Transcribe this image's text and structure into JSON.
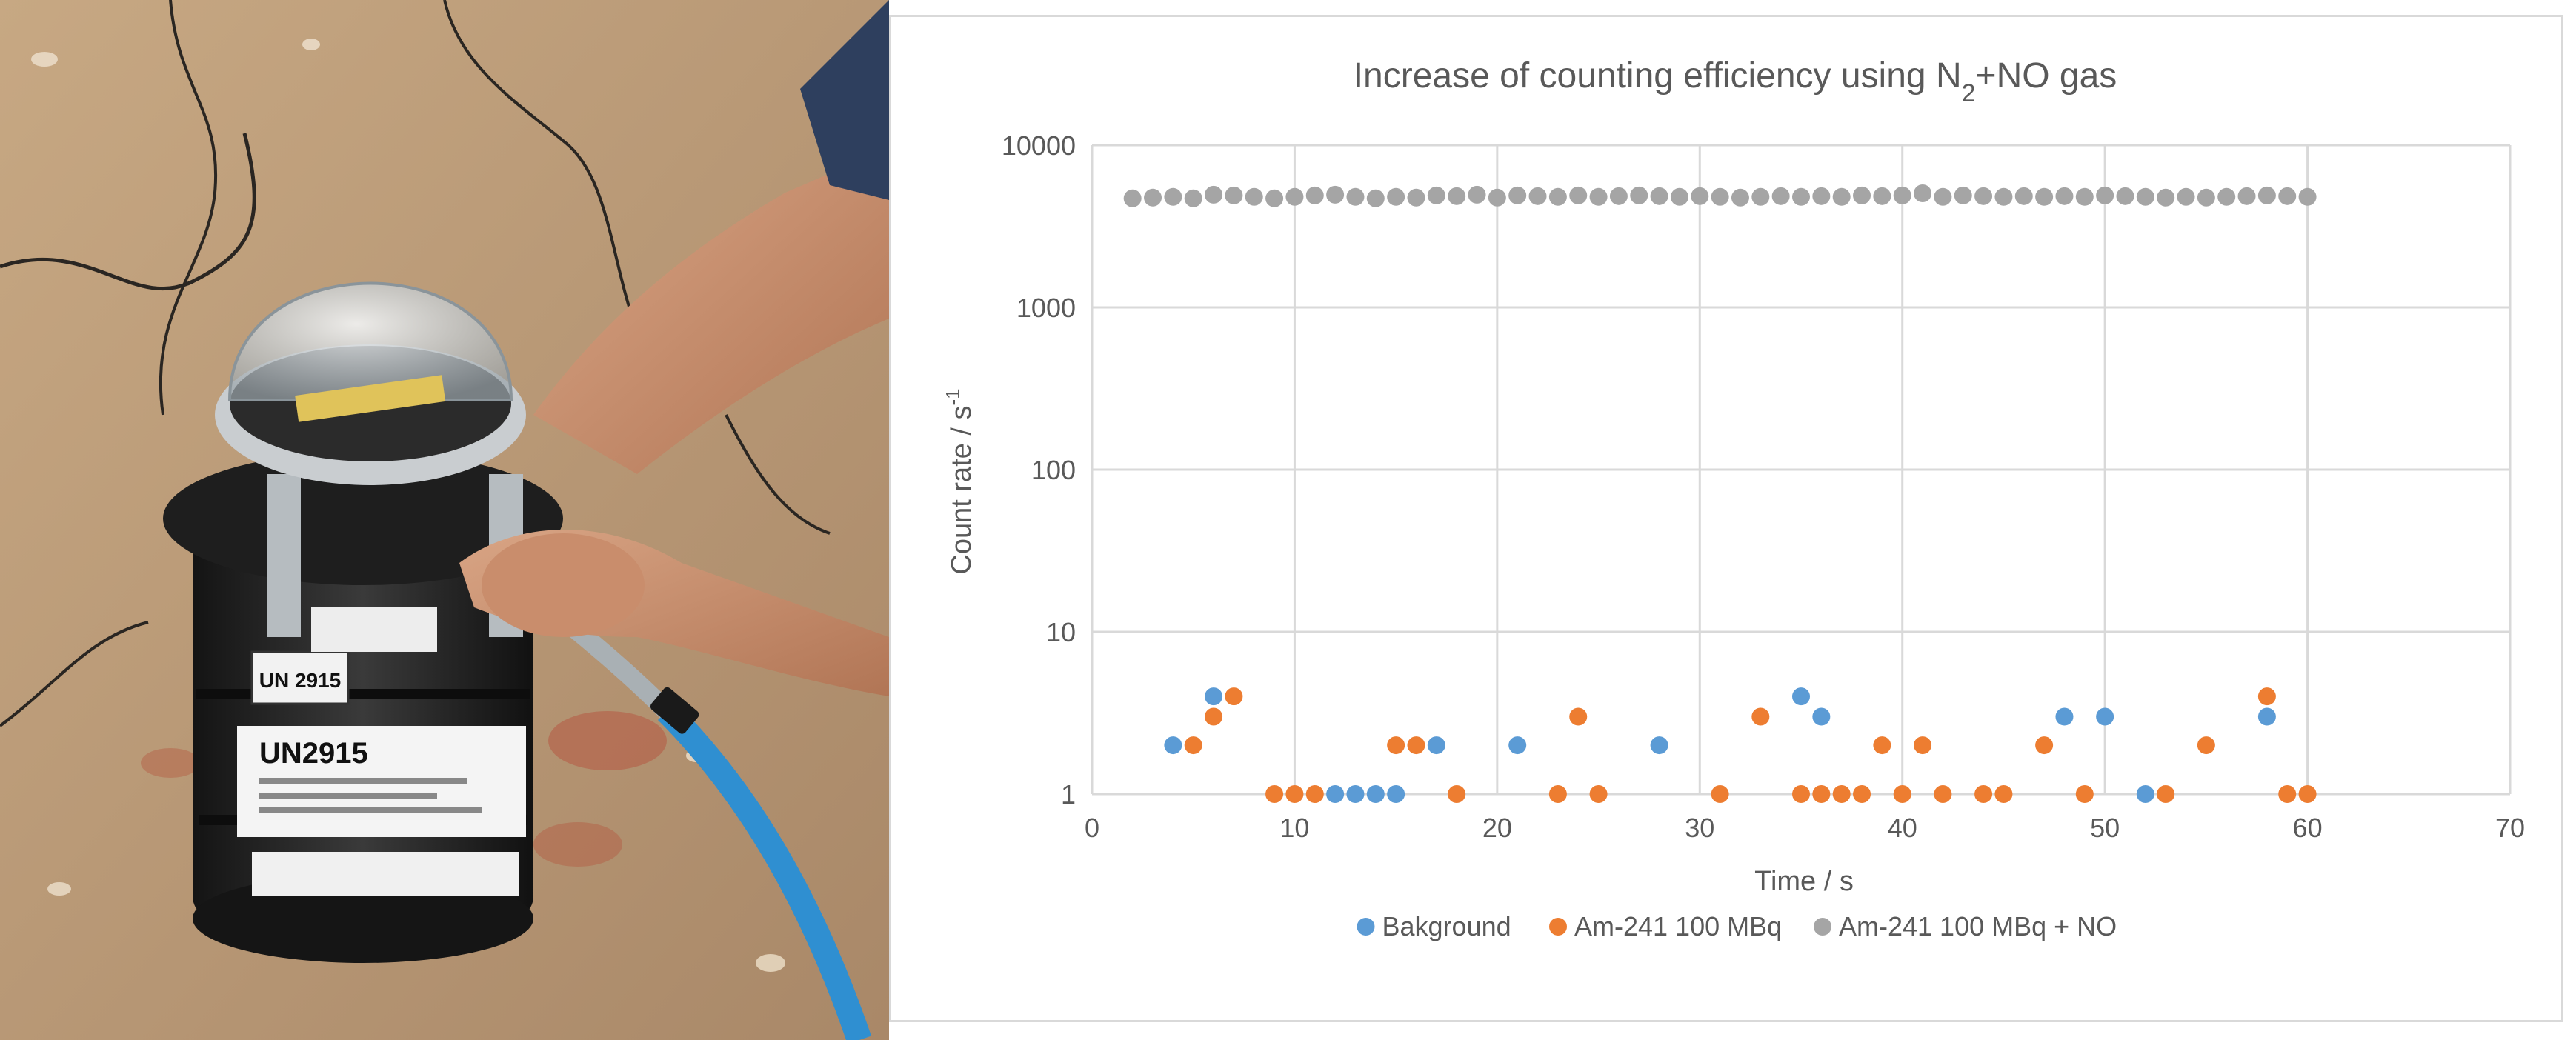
{
  "photo": {
    "description_icon": "field-detector-photo",
    "label_un_small": "UN 2915",
    "label_un_big": "UN2915"
  },
  "chart_data": {
    "type": "scatter",
    "title_main": "Increase of counting efficiency using N",
    "title_sub": "2",
    "title_tail": "+NO gas",
    "xlabel": "Time / s",
    "ylabel_main": "Count rate  / s",
    "ylabel_sup": "-1",
    "x_scale": "linear",
    "y_scale": "log",
    "xlim": [
      0,
      70
    ],
    "ylim": [
      1,
      10000
    ],
    "x_ticks": [
      0,
      10,
      20,
      30,
      40,
      50,
      60,
      70
    ],
    "y_ticks": [
      1,
      10,
      100,
      1000,
      10000
    ],
    "grid": true,
    "legend_position": "bottom",
    "series": [
      {
        "name": "Bakground",
        "color": "#5b9bd5",
        "points": [
          [
            4,
            2
          ],
          [
            6,
            4
          ],
          [
            12,
            1
          ],
          [
            13,
            1
          ],
          [
            14,
            1
          ],
          [
            15,
            1
          ],
          [
            17,
            2
          ],
          [
            21,
            2
          ],
          [
            28,
            2
          ],
          [
            35,
            4
          ],
          [
            36,
            3
          ],
          [
            48,
            3
          ],
          [
            50,
            3
          ],
          [
            52,
            1
          ],
          [
            58,
            3
          ]
        ]
      },
      {
        "name": "Am-241 100 MBq",
        "color": "#ed7d31",
        "points": [
          [
            5,
            2
          ],
          [
            6,
            3
          ],
          [
            7,
            4
          ],
          [
            9,
            1
          ],
          [
            10,
            1
          ],
          [
            11,
            1
          ],
          [
            15,
            2
          ],
          [
            16,
            2
          ],
          [
            18,
            1
          ],
          [
            23,
            1
          ],
          [
            24,
            3
          ],
          [
            25,
            1
          ],
          [
            31,
            1
          ],
          [
            33,
            3
          ],
          [
            35,
            1
          ],
          [
            36,
            1
          ],
          [
            37,
            1
          ],
          [
            38,
            1
          ],
          [
            39,
            2
          ],
          [
            40,
            1
          ],
          [
            41,
            2
          ],
          [
            42,
            1
          ],
          [
            44,
            1
          ],
          [
            45,
            1
          ],
          [
            47,
            2
          ],
          [
            49,
            1
          ],
          [
            53,
            1
          ],
          [
            55,
            2
          ],
          [
            58,
            4
          ],
          [
            59,
            1
          ],
          [
            60,
            1
          ]
        ]
      },
      {
        "name": "Am-241 100 MBq + NO",
        "color": "#a5a5a5",
        "points": [
          [
            2,
            4700
          ],
          [
            3,
            4750
          ],
          [
            4,
            4800
          ],
          [
            5,
            4700
          ],
          [
            6,
            4950
          ],
          [
            7,
            4900
          ],
          [
            8,
            4800
          ],
          [
            9,
            4700
          ],
          [
            10,
            4800
          ],
          [
            11,
            4900
          ],
          [
            12,
            4950
          ],
          [
            13,
            4800
          ],
          [
            14,
            4700
          ],
          [
            15,
            4800
          ],
          [
            16,
            4750
          ],
          [
            17,
            4900
          ],
          [
            18,
            4850
          ],
          [
            19,
            4950
          ],
          [
            20,
            4750
          ],
          [
            21,
            4900
          ],
          [
            22,
            4850
          ],
          [
            23,
            4800
          ],
          [
            24,
            4900
          ],
          [
            25,
            4800
          ],
          [
            26,
            4850
          ],
          [
            27,
            4900
          ],
          [
            28,
            4850
          ],
          [
            29,
            4800
          ],
          [
            30,
            4850
          ],
          [
            31,
            4800
          ],
          [
            32,
            4750
          ],
          [
            33,
            4800
          ],
          [
            34,
            4850
          ],
          [
            35,
            4800
          ],
          [
            36,
            4850
          ],
          [
            37,
            4800
          ],
          [
            38,
            4900
          ],
          [
            39,
            4850
          ],
          [
            40,
            4900
          ],
          [
            41,
            5050
          ],
          [
            42,
            4800
          ],
          [
            43,
            4900
          ],
          [
            44,
            4850
          ],
          [
            45,
            4800
          ],
          [
            46,
            4850
          ],
          [
            47,
            4800
          ],
          [
            48,
            4850
          ],
          [
            49,
            4800
          ],
          [
            50,
            4900
          ],
          [
            51,
            4850
          ],
          [
            52,
            4800
          ],
          [
            53,
            4750
          ],
          [
            54,
            4800
          ],
          [
            55,
            4750
          ],
          [
            56,
            4800
          ],
          [
            57,
            4850
          ],
          [
            58,
            4900
          ],
          [
            59,
            4850
          ],
          [
            60,
            4800
          ]
        ]
      }
    ]
  }
}
